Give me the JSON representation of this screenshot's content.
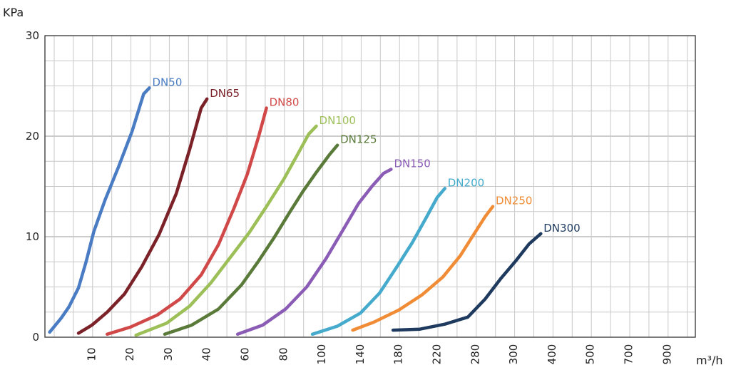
{
  "chart_data": {
    "type": "line",
    "ylabel": "KPa",
    "xlabel": "m³/h",
    "ylim": [
      0,
      30
    ],
    "y_ticks": [
      "0",
      "10",
      "20",
      "30"
    ],
    "x_ticks": [
      "10",
      "20",
      "30",
      "40",
      "60",
      "80",
      "100",
      "140",
      "180",
      "220",
      "280",
      "300",
      "400",
      "500",
      "700",
      "900"
    ],
    "grid": true,
    "series": [
      {
        "name": "DN50",
        "color": "#4a7cc4",
        "x": [
          -0.1,
          0.2,
          0.4,
          0.65,
          0.85,
          1.05,
          1.35,
          1.7,
          2.05,
          2.35,
          2.5
        ],
        "y": [
          0.5,
          1.9,
          3.0,
          4.9,
          7.5,
          10.5,
          13.7,
          17.0,
          20.5,
          24.2,
          24.8
        ]
      },
      {
        "name": "DN65",
        "color": "#7b2229",
        "x": [
          0.65,
          1.0,
          1.4,
          1.85,
          2.3,
          2.75,
          3.2,
          3.55,
          3.85,
          4.0
        ],
        "y": [
          0.4,
          1.2,
          2.5,
          4.3,
          7.0,
          10.2,
          14.3,
          18.7,
          22.8,
          23.7
        ]
      },
      {
        "name": "DN80",
        "color": "#d04848",
        "x": [
          1.4,
          2.0,
          2.7,
          3.3,
          3.85,
          4.3,
          4.7,
          5.05,
          5.35,
          5.55
        ],
        "y": [
          0.3,
          1.0,
          2.2,
          3.8,
          6.2,
          9.2,
          12.8,
          16.2,
          20.0,
          22.8
        ]
      },
      {
        "name": "DN100",
        "color": "#9cbf58",
        "x": [
          2.15,
          2.95,
          3.55,
          4.1,
          4.6,
          5.1,
          5.55,
          6.0,
          6.35,
          6.65,
          6.85
        ],
        "y": [
          0.2,
          1.4,
          3.1,
          5.4,
          7.9,
          10.4,
          13.0,
          15.7,
          18.1,
          20.2,
          21.0
        ]
      },
      {
        "name": "DN125",
        "color": "#5a7a3a",
        "x": [
          2.9,
          3.6,
          4.3,
          4.9,
          5.35,
          5.75,
          6.15,
          6.5,
          6.85,
          7.2,
          7.4
        ],
        "y": [
          0.3,
          1.2,
          2.8,
          5.2,
          7.6,
          9.9,
          12.4,
          14.5,
          16.4,
          18.2,
          19.1
        ]
      },
      {
        "name": "DN150",
        "color": "#8a5cb5",
        "x": [
          4.8,
          5.45,
          6.05,
          6.6,
          7.1,
          7.55,
          7.95,
          8.3,
          8.6,
          8.8
        ],
        "y": [
          0.3,
          1.2,
          2.8,
          5.0,
          7.8,
          10.7,
          13.3,
          15.0,
          16.3,
          16.7
        ]
      },
      {
        "name": "DN200",
        "color": "#45aacc",
        "x": [
          6.75,
          7.4,
          8.0,
          8.5,
          8.95,
          9.35,
          9.7,
          10.0,
          10.2
        ],
        "y": [
          0.3,
          1.1,
          2.4,
          4.4,
          7.0,
          9.4,
          11.8,
          13.9,
          14.8
        ]
      },
      {
        "name": "DN250",
        "color": "#f08c36",
        "x": [
          7.8,
          8.35,
          9.0,
          9.6,
          10.15,
          10.6,
          10.95,
          11.25,
          11.45
        ],
        "y": [
          0.7,
          1.5,
          2.7,
          4.2,
          6.0,
          8.1,
          10.2,
          12.0,
          13.0
        ]
      },
      {
        "name": "DN300",
        "color": "#1f3a5f",
        "x": [
          8.85,
          9.55,
          10.2,
          10.8,
          11.25,
          11.65,
          12.05,
          12.4,
          12.7
        ],
        "y": [
          0.7,
          0.8,
          1.3,
          2.0,
          3.8,
          5.8,
          7.6,
          9.3,
          10.3
        ]
      }
    ]
  }
}
